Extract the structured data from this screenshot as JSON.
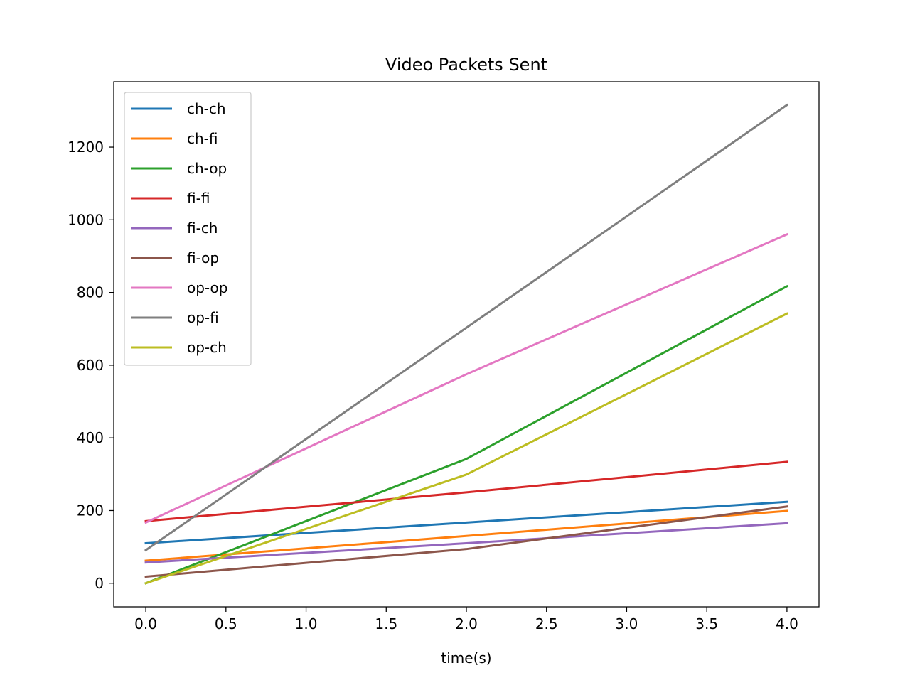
{
  "chart_data": {
    "type": "line",
    "title": "Video Packets Sent",
    "xlabel": "time(s)",
    "ylabel": "",
    "xlim": [
      -0.2,
      4.2
    ],
    "ylim": [
      -65,
      1380
    ],
    "xticks": [
      0.0,
      0.5,
      1.0,
      1.5,
      2.0,
      2.5,
      3.0,
      3.5,
      4.0
    ],
    "xtick_labels": [
      "0.0",
      "0.5",
      "1.0",
      "1.5",
      "2.0",
      "2.5",
      "3.0",
      "3.5",
      "4.0"
    ],
    "yticks": [
      0,
      200,
      400,
      600,
      800,
      1000,
      1200
    ],
    "ytick_labels": [
      "0",
      "200",
      "400",
      "600",
      "800",
      "1000",
      "1200"
    ],
    "grid": false,
    "legend_position": "upper-left",
    "x": [
      0,
      2,
      4
    ],
    "series": [
      {
        "name": "ch-ch",
        "color": "#1f77b4",
        "values": [
          110,
          167,
          224
        ]
      },
      {
        "name": "ch-fi",
        "color": "#ff7f0e",
        "values": [
          62,
          130,
          199
        ]
      },
      {
        "name": "ch-op",
        "color": "#2ca02c",
        "values": [
          0,
          342,
          817
        ]
      },
      {
        "name": "fi-fi",
        "color": "#d62728",
        "values": [
          171,
          250,
          334
        ]
      },
      {
        "name": "fi-ch",
        "color": "#9467bd",
        "values": [
          57,
          110,
          165
        ]
      },
      {
        "name": "fi-op",
        "color": "#8c564b",
        "values": [
          18,
          94,
          211
        ]
      },
      {
        "name": "op-op",
        "color": "#e377c2",
        "values": [
          167,
          575,
          960
        ]
      },
      {
        "name": "op-fi",
        "color": "#7f7f7f",
        "values": [
          91,
          703,
          1316
        ]
      },
      {
        "name": "op-ch",
        "color": "#bcbd22",
        "values": [
          0,
          299,
          742
        ]
      }
    ]
  }
}
